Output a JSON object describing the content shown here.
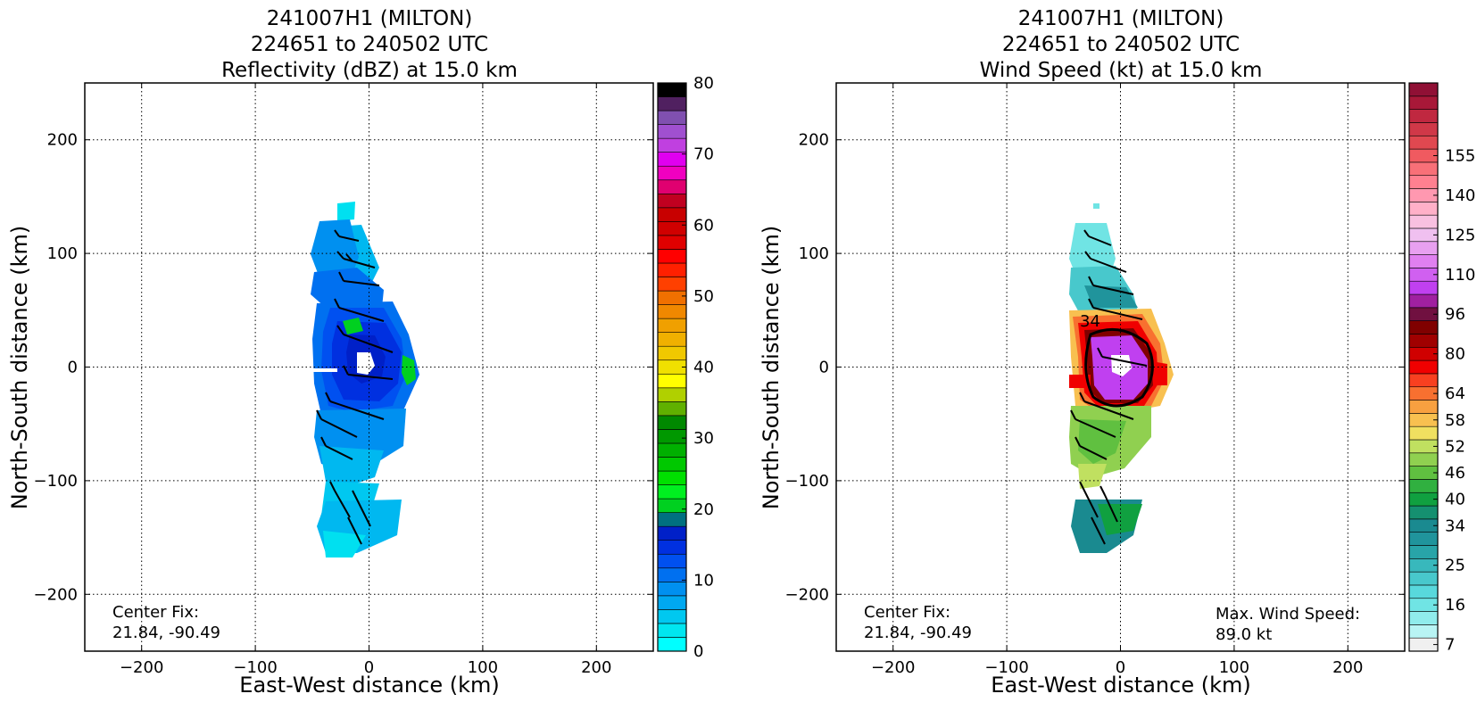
{
  "chart_data": [
    {
      "type": "heatmap",
      "title": [
        "241007H1 (MILTON)",
        "224651 to 240502 UTC",
        "Reflectivity (dBZ) at 15.0 km"
      ],
      "xlabel": "East-West distance (km)",
      "ylabel": "North-South distance (km)",
      "xlim": [
        -250,
        250
      ],
      "ylim": [
        -250,
        250
      ],
      "xticks": [
        -200,
        -100,
        0,
        100,
        200
      ],
      "yticks": [
        -200,
        -100,
        0,
        100,
        200
      ],
      "xtick_labels": [
        "−200",
        "−100",
        "0",
        "100",
        "200"
      ],
      "ytick_labels": [
        "−200",
        "−100",
        "0",
        "100",
        "200"
      ],
      "grid": true,
      "annotation": {
        "line1": "Center Fix:",
        "line2": "21.84, -90.49"
      },
      "colorbar": {
        "min": 0,
        "max": 80,
        "labels": [
          "0",
          "10",
          "20",
          "30",
          "40",
          "50",
          "60",
          "70",
          "80"
        ],
        "label_values": [
          0,
          10,
          20,
          30,
          40,
          50,
          60,
          70,
          80
        ],
        "colors": [
          "#00ffff",
          "#00e6f0",
          "#00c8f0",
          "#00a8f0",
          "#0090f0",
          "#0070f0",
          "#0050f0",
          "#0030e0",
          "#0020c8",
          "#007080",
          "#00d020",
          "#00f020",
          "#00e000",
          "#00c800",
          "#00b000",
          "#009800",
          "#008800",
          "#60b000",
          "#b0d000",
          "#ffff00",
          "#f0e000",
          "#f0c800",
          "#f0b000",
          "#f0a000",
          "#f08800",
          "#f07000",
          "#ff4000",
          "#ff2000",
          "#ff0000",
          "#e00000",
          "#d00000",
          "#c80000",
          "#c00020",
          "#e00070",
          "#f000c0",
          "#e000f0",
          "#c040e0",
          "#a050d0",
          "#8050b0",
          "#502060",
          "#000000"
        ]
      },
      "barb_region": "storm core"
    },
    {
      "type": "heatmap",
      "title": [
        "241007H1 (MILTON)",
        "224651 to 240502 UTC",
        "Wind Speed (kt) at 15.0 km"
      ],
      "xlabel": "East-West distance (km)",
      "ylabel": "North-South distance (km)",
      "xlim": [
        -250,
        250
      ],
      "ylim": [
        -250,
        250
      ],
      "xticks": [
        -200,
        -100,
        0,
        100,
        200
      ],
      "yticks": [
        -200,
        -100,
        0,
        100,
        200
      ],
      "xtick_labels": [
        "−200",
        "−100",
        "0",
        "100",
        "200"
      ],
      "ytick_labels": [
        "−200",
        "−100",
        "0",
        "100",
        "200"
      ],
      "grid": true,
      "annotation": {
        "line1": "Center Fix:",
        "line2": "21.84, -90.49"
      },
      "annotation2": {
        "line1": "Max. Wind Speed:",
        "line2": "89.0 kt"
      },
      "contour_label": "34",
      "colorbar": {
        "labels": [
          "7",
          "16",
          "25",
          "34",
          "40",
          "46",
          "52",
          "58",
          "64",
          "80",
          "96",
          "110",
          "125",
          "140",
          "155"
        ],
        "label_levels": [
          0,
          3,
          6,
          9,
          11,
          13,
          15,
          17,
          19,
          22,
          25,
          28,
          31,
          34,
          37
        ],
        "colors": [
          "#f0f0f0",
          "#b8f4f4",
          "#90ecec",
          "#70e4e4",
          "#58d8dc",
          "#48c8cc",
          "#38b8bc",
          "#28a4a8",
          "#20949c",
          "#1a8a90",
          "#159070",
          "#10a040",
          "#30b040",
          "#60c040",
          "#90d050",
          "#c0e060",
          "#f0e060",
          "#f8c050",
          "#f8a040",
          "#f87030",
          "#f84020",
          "#f00000",
          "#d00000",
          "#a00000",
          "#800000",
          "#701040",
          "#a020a0",
          "#c040f0",
          "#d060f0",
          "#e080f0",
          "#e8a0f0",
          "#f0c0f0",
          "#f8c0e0",
          "#ffb0c8",
          "#ff98b0",
          "#ff8090",
          "#f87078",
          "#f05a60",
          "#e04850",
          "#d03848",
          "#c02840",
          "#a81838",
          "#901035"
        ]
      }
    }
  ]
}
